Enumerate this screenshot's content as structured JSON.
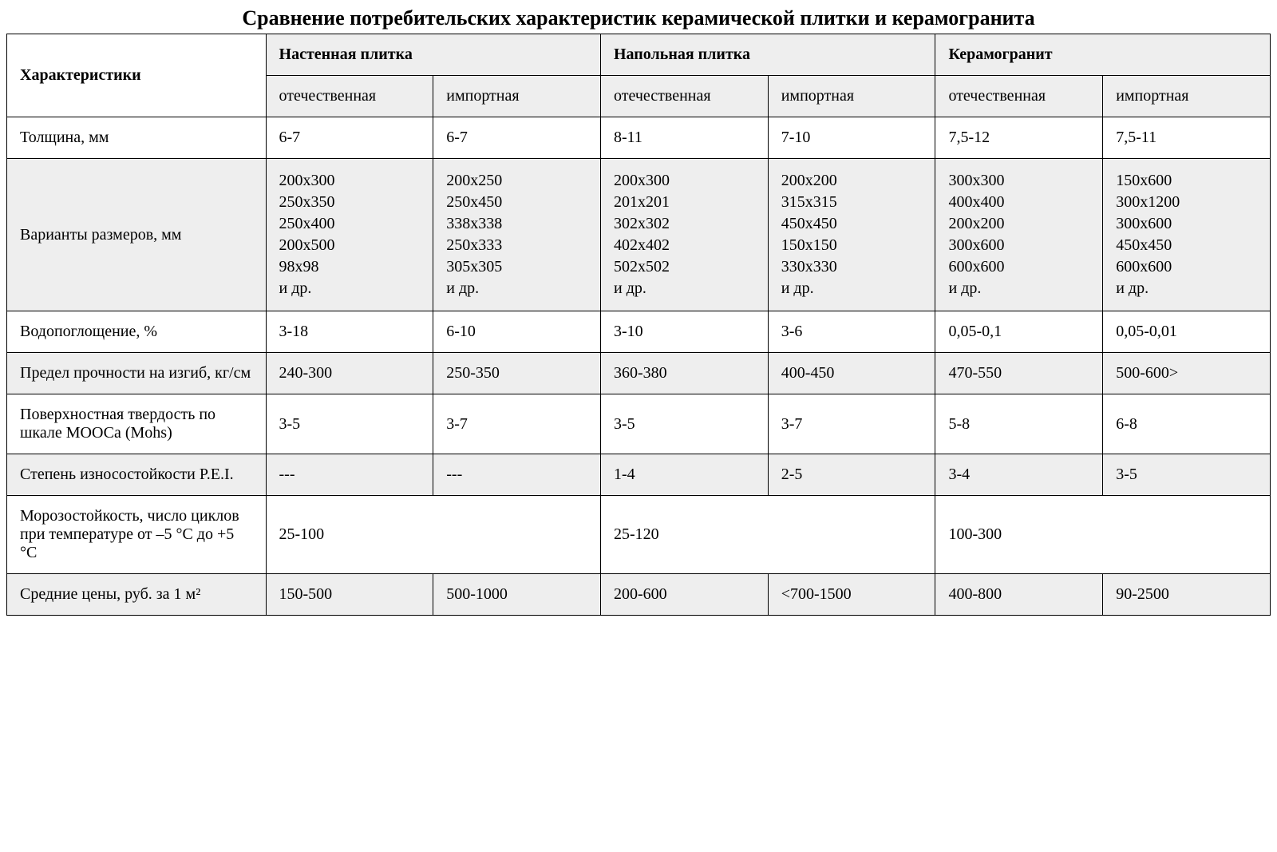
{
  "title": "Сравнение потребительских характеристик керамической плитки и керамогранита",
  "colors": {
    "background": "#ffffff",
    "shaded": "#eeeeee",
    "border": "#000000",
    "text": "#000000"
  },
  "typography": {
    "title_fontsize": 26,
    "cell_fontsize": 20,
    "font_family": "Times New Roman"
  },
  "columns": {
    "characteristics": "Характеристики",
    "groups": [
      {
        "label": "Настенная плитка",
        "sub": [
          "отечественная",
          "импортная"
        ]
      },
      {
        "label": "Напольная плитка",
        "sub": [
          "отечественная",
          "импортная"
        ]
      },
      {
        "label": "Керамогранит",
        "sub": [
          "отечественная",
          "импортная"
        ]
      }
    ]
  },
  "rows": [
    {
      "label": "Толщина, мм",
      "shaded": false,
      "cells": [
        "6-7",
        "6-7",
        "8-11",
        "7-10",
        "7,5-12",
        "7,5-11"
      ]
    },
    {
      "label": "Варианты размеров, мм",
      "shaded": true,
      "multiline": true,
      "cells": [
        "200х300\n250х350\n250х400\n200х500\n98х98\nи др.",
        "200х250\n250х450\n338х338\n250х333\n305х305\nи др.",
        "200х300\n201х201\n302х302\n402х402\n502х502\nи др.",
        "200х200\n315х315\n450х450\n150х150\n330х330\nи др.",
        "300х300\n400х400\n200х200\n300х600\n600х600\nи др.",
        "150х600\n300х1200\n300х600\n450х450\n600х600\nи др."
      ]
    },
    {
      "label": "Водопоглощение, %",
      "shaded": false,
      "cells": [
        "3-18",
        "6-10",
        "3-10",
        "3-6",
        "0,05-0,1",
        "0,05-0,01"
      ]
    },
    {
      "label": "Предел прочности на изгиб, кг/см",
      "shaded": true,
      "cells": [
        "240-300",
        "250-350",
        "360-380",
        "400-450",
        "470-550",
        "500-600>"
      ]
    },
    {
      "label": "Поверхностная твердость по шкале МООСа (Mohs)",
      "shaded": false,
      "cells": [
        "3-5",
        "3-7",
        "3-5",
        "3-7",
        "5-8",
        "6-8"
      ]
    },
    {
      "label": "Степень износостойкости P.E.I.",
      "shaded": true,
      "cells": [
        "---",
        "---",
        "1-4",
        "2-5",
        "3-4",
        "3-5"
      ]
    },
    {
      "label": "Морозостойкость, число циклов при температуре от –5 °С до +5 °С",
      "shaded": false,
      "merged": true,
      "cells": [
        "25-100",
        "25-120",
        "100-300"
      ]
    },
    {
      "label": "Средние цены, руб. за 1 м²",
      "shaded": true,
      "cells": [
        "150-500",
        "500-1000",
        "200-600",
        "<700-1500",
        "400-800",
        "90-2500"
      ]
    }
  ]
}
